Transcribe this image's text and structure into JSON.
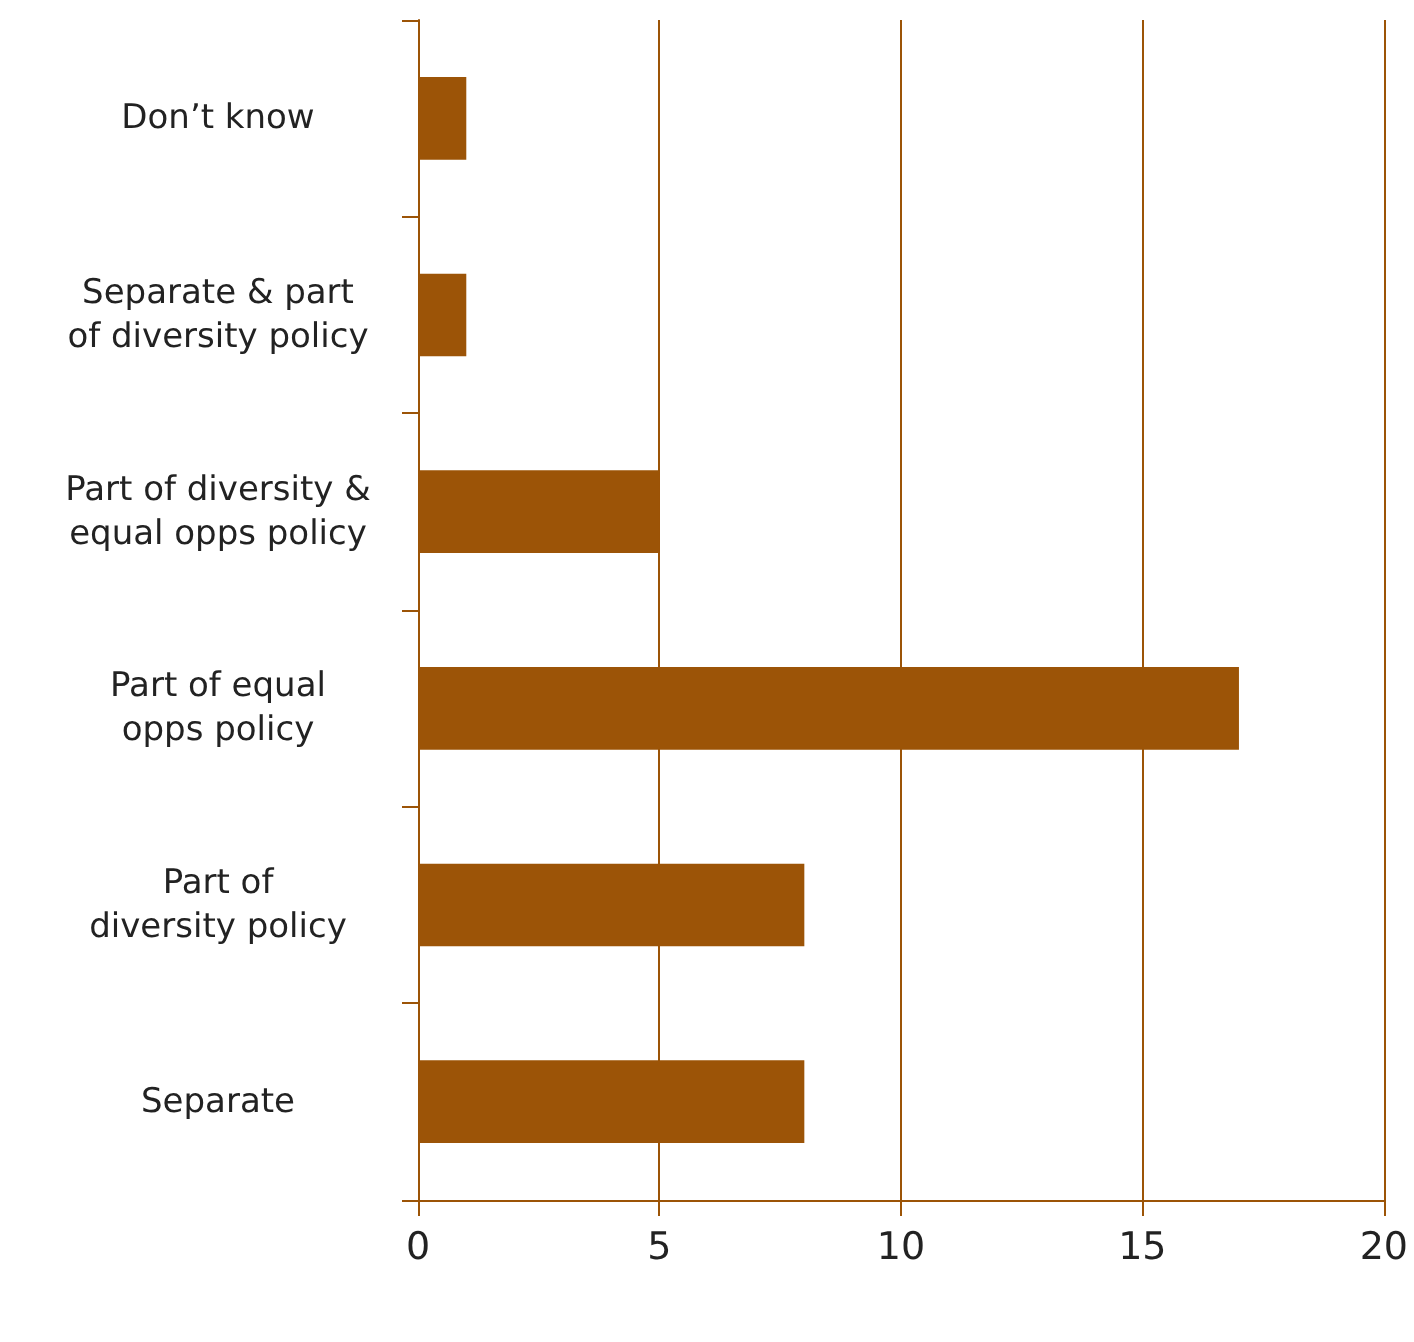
{
  "chart_data": {
    "type": "bar",
    "orientation": "horizontal",
    "categories": [
      "Don’t know",
      "Separate & part\nof diversity policy",
      "Part of diversity &\nequal opps policy",
      "Part of equal\nopps policy",
      "Part of\ndiversity policy",
      "Separate"
    ],
    "values": [
      1,
      1,
      5,
      17,
      8,
      8
    ],
    "color": "#9c5407",
    "xlim": [
      0,
      20
    ],
    "xticks": [
      0,
      5,
      10,
      15,
      20
    ],
    "grid": "x"
  }
}
